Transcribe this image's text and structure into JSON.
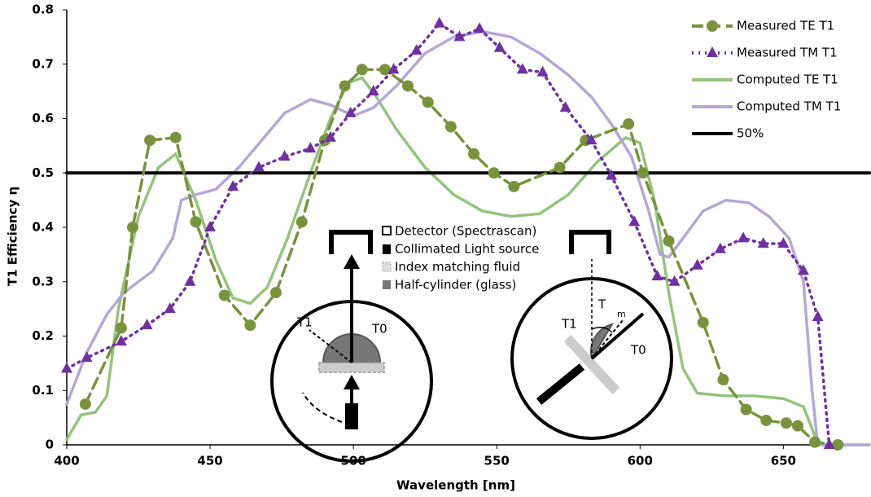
{
  "chart_data": {
    "type": "line",
    "x_label": "Wavelength [nm]",
    "y_label": "T1 Efficiency η",
    "xlim": [
      400,
      680
    ],
    "ylim": [
      0,
      0.8
    ],
    "xticks": [
      400,
      450,
      500,
      550,
      600,
      650
    ],
    "yticks": [
      0,
      0.1,
      0.2,
      0.3,
      0.4,
      0.5,
      0.6,
      0.7,
      0.8
    ],
    "grid": false,
    "legend": "top-right",
    "series": [
      {
        "name": "Measured TE T1",
        "color": "#77933c",
        "dash": "dashed",
        "marker": "circle",
        "x": [
          406.5,
          419,
          423,
          429,
          438,
          445,
          455,
          464,
          473,
          482,
          490,
          497,
          503,
          511,
          519,
          526,
          534,
          542,
          549,
          556,
          572,
          581,
          596,
          601,
          610,
          622,
          629,
          637,
          644,
          651,
          655,
          661,
          669
        ],
        "values": [
          0.075,
          0.215,
          0.4,
          0.56,
          0.565,
          0.41,
          0.275,
          0.22,
          0.28,
          0.41,
          0.56,
          0.66,
          0.69,
          0.69,
          0.66,
          0.63,
          0.585,
          0.535,
          0.5,
          0.475,
          0.51,
          0.56,
          0.59,
          0.5,
          0.375,
          0.225,
          0.12,
          0.065,
          0.045,
          0.04,
          0.035,
          0.005,
          0
        ]
      },
      {
        "name": "Measured TM T1",
        "color": "#7030a0",
        "dash": "dotted",
        "marker": "triangle",
        "x": [
          400,
          407,
          419,
          428,
          436,
          443,
          450,
          458,
          467,
          476,
          485,
          492,
          499,
          507,
          514,
          522,
          530,
          537,
          544,
          551,
          559,
          566,
          574,
          583,
          590,
          598,
          606,
          612,
          620,
          628,
          636,
          643,
          650,
          657,
          662,
          666
        ],
        "values": [
          0.14,
          0.16,
          0.19,
          0.22,
          0.25,
          0.3,
          0.4,
          0.475,
          0.51,
          0.53,
          0.545,
          0.565,
          0.61,
          0.65,
          0.69,
          0.725,
          0.775,
          0.75,
          0.765,
          0.73,
          0.69,
          0.685,
          0.62,
          0.56,
          0.495,
          0.41,
          0.31,
          0.3,
          0.33,
          0.36,
          0.38,
          0.37,
          0.37,
          0.32,
          0.235,
          0
        ]
      },
      {
        "name": "Computed TE T1",
        "color": "#93c47d",
        "dash": "solid",
        "marker": "none",
        "x": [
          400,
          405,
          410,
          414,
          418,
          425,
          432,
          438,
          445,
          452,
          458,
          464,
          470,
          477,
          485,
          492,
          498,
          503,
          508,
          515,
          525,
          535,
          545,
          555,
          565,
          575,
          585,
          595,
          600,
          605,
          610,
          615,
          620,
          630,
          640,
          650,
          657,
          660,
          662,
          680
        ],
        "values": [
          0.01,
          0.055,
          0.06,
          0.09,
          0.25,
          0.42,
          0.51,
          0.535,
          0.45,
          0.34,
          0.27,
          0.26,
          0.29,
          0.38,
          0.5,
          0.6,
          0.665,
          0.675,
          0.64,
          0.58,
          0.51,
          0.46,
          0.43,
          0.42,
          0.425,
          0.46,
          0.52,
          0.565,
          0.555,
          0.45,
          0.28,
          0.14,
          0.095,
          0.09,
          0.09,
          0.085,
          0.07,
          0.03,
          0,
          0
        ]
      },
      {
        "name": "Computed TM T1",
        "color": "#b4a7d6",
        "dash": "solid",
        "marker": "none",
        "x": [
          400,
          407,
          414,
          420,
          430,
          437,
          440,
          445,
          452,
          460,
          468,
          476,
          485,
          492,
          500,
          507,
          515,
          525,
          535,
          545,
          555,
          565,
          575,
          583,
          590,
          597,
          603,
          607,
          610,
          615,
          622,
          630,
          638,
          645,
          652,
          657,
          660,
          662,
          680
        ],
        "values": [
          0.075,
          0.17,
          0.24,
          0.28,
          0.32,
          0.38,
          0.45,
          0.46,
          0.47,
          0.51,
          0.56,
          0.61,
          0.635,
          0.625,
          0.605,
          0.62,
          0.66,
          0.72,
          0.75,
          0.76,
          0.75,
          0.72,
          0.68,
          0.64,
          0.59,
          0.53,
          0.43,
          0.35,
          0.345,
          0.38,
          0.43,
          0.45,
          0.445,
          0.42,
          0.38,
          0.3,
          0.1,
          0,
          0
        ]
      },
      {
        "name": "50%",
        "color": "#000000",
        "dash": "solid",
        "marker": "none",
        "x": [
          400,
          680
        ],
        "values": [
          0.5,
          0.5
        ]
      }
    ],
    "annotations": [
      "Detector (Spectrascan)",
      "Collimated Light source",
      "Index matching fluid",
      "Half-cylinder (glass)",
      "T1",
      "T0",
      "T1",
      "T0",
      "T",
      "m"
    ]
  }
}
